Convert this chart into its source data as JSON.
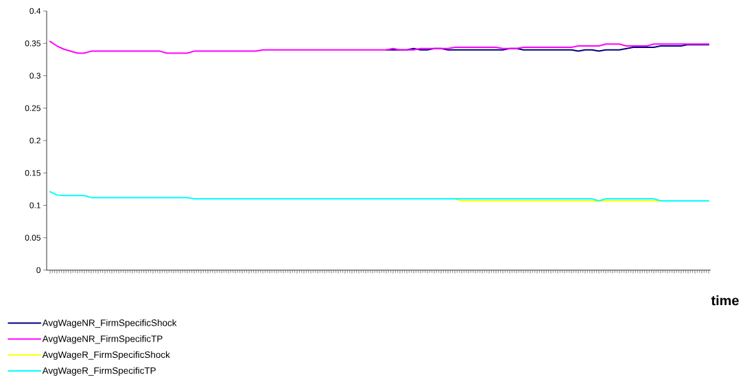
{
  "chart_data": {
    "type": "line",
    "xlabel": "time",
    "categories": [
      null,
      null,
      null,
      null,
      null,
      null,
      null,
      null,
      null,
      null,
      null,
      null,
      null,
      null,
      null,
      null,
      null,
      null,
      null,
      null,
      null,
      null,
      null,
      null,
      null,
      null,
      null,
      null,
      null,
      null,
      null,
      null,
      null,
      null,
      null,
      null,
      null,
      null,
      null,
      null,
      null,
      null,
      null,
      null,
      null,
      null,
      null,
      null,
      null,
      null,
      null,
      null,
      null,
      null,
      null,
      null,
      null,
      null,
      null,
      null,
      null,
      null,
      null,
      null,
      null,
      null,
      null,
      null,
      null,
      null,
      null,
      null,
      null,
      null,
      null,
      null,
      null,
      null,
      null,
      null,
      null,
      null,
      null,
      null,
      null,
      null,
      null,
      null,
      null,
      null,
      null,
      null,
      null,
      null,
      null,
      null,
      null
    ],
    "ylim": [
      0,
      0.4
    ],
    "yticks": [
      0,
      0.05,
      0.1,
      0.15,
      0.2,
      0.25,
      0.3,
      0.35,
      0.4
    ],
    "tick_labels": "y",
    "legend": "bottom left",
    "series": [
      {
        "name": "AvgWageNR_FirmSpecificShock",
        "color": "#000080",
        "values": [
          null,
          null,
          null,
          null,
          null,
          null,
          null,
          null,
          null,
          null,
          null,
          null,
          null,
          null,
          null,
          null,
          null,
          null,
          null,
          null,
          null,
          null,
          null,
          null,
          null,
          null,
          null,
          null,
          null,
          null,
          null,
          null,
          null,
          null,
          null,
          null,
          null,
          null,
          null,
          null,
          null,
          null,
          null,
          null,
          null,
          null,
          null,
          null,
          null,
          0.34,
          0.34,
          0.34,
          0.34,
          0.342,
          0.34,
          0.34,
          0.342,
          0.342,
          0.34,
          0.34,
          0.34,
          0.34,
          0.34,
          0.34,
          0.34,
          0.34,
          0.34,
          0.342,
          0.342,
          0.34,
          0.34,
          0.34,
          0.34,
          0.34,
          0.34,
          0.34,
          0.34,
          0.338,
          0.34,
          0.34,
          0.338,
          0.34,
          0.34,
          0.34,
          0.342,
          0.344,
          0.344,
          0.344,
          0.344,
          0.346,
          0.346,
          0.346,
          0.346,
          0.348,
          0.348,
          0.348,
          0.348
        ]
      },
      {
        "name": "AvgWageNR_FirmSpecificTP",
        "color": "#ff00ff",
        "values": [
          0.353,
          0.346,
          0.341,
          0.338,
          0.335,
          0.335,
          0.338,
          0.338,
          0.338,
          0.338,
          0.338,
          0.338,
          0.338,
          0.338,
          0.338,
          0.338,
          0.338,
          0.335,
          0.335,
          0.335,
          0.335,
          0.338,
          0.338,
          0.338,
          0.338,
          0.338,
          0.338,
          0.338,
          0.338,
          0.338,
          0.338,
          0.34,
          0.34,
          0.34,
          0.34,
          0.34,
          0.34,
          0.34,
          0.34,
          0.34,
          0.34,
          0.34,
          0.34,
          0.34,
          0.34,
          0.34,
          0.34,
          0.34,
          0.34,
          0.34,
          0.342,
          0.34,
          0.34,
          0.34,
          0.342,
          0.342,
          0.342,
          0.342,
          0.342,
          0.344,
          0.344,
          0.344,
          0.344,
          0.344,
          0.344,
          0.344,
          0.342,
          0.342,
          0.342,
          0.344,
          0.344,
          0.344,
          0.344,
          0.344,
          0.344,
          0.344,
          0.344,
          0.346,
          0.346,
          0.346,
          0.346,
          0.349,
          0.349,
          0.349,
          0.346,
          0.346,
          0.346,
          0.346,
          0.349,
          0.349,
          0.349,
          0.349,
          0.349,
          0.349,
          0.349,
          0.349,
          0.349
        ]
      },
      {
        "name": "AvgWageR_FirmSpecificShock",
        "color": "#ffff00",
        "values": [
          null,
          null,
          null,
          null,
          null,
          null,
          null,
          null,
          null,
          null,
          null,
          null,
          null,
          null,
          null,
          null,
          null,
          null,
          null,
          null,
          null,
          null,
          null,
          null,
          null,
          null,
          null,
          null,
          null,
          null,
          null,
          null,
          null,
          null,
          null,
          null,
          null,
          null,
          null,
          null,
          null,
          null,
          null,
          null,
          null,
          null,
          null,
          null,
          null,
          null,
          null,
          null,
          null,
          null,
          null,
          null,
          null,
          null,
          null,
          0.11,
          0.107,
          0.107,
          0.107,
          0.107,
          0.107,
          0.107,
          0.107,
          0.107,
          0.107,
          0.107,
          0.107,
          0.107,
          0.107,
          0.107,
          0.107,
          0.107,
          0.107,
          0.107,
          0.107,
          0.107,
          0.107,
          0.107,
          0.107,
          0.107,
          0.107,
          0.107,
          0.107,
          0.107,
          0.107,
          0.107,
          null,
          null,
          null,
          null,
          null,
          null,
          null
        ]
      },
      {
        "name": "AvgWageR_FirmSpecificTP",
        "color": "#00ffff",
        "values": [
          0.121,
          0.116,
          0.115,
          0.115,
          0.115,
          0.115,
          0.112,
          0.112,
          0.112,
          0.112,
          0.112,
          0.112,
          0.112,
          0.112,
          0.112,
          0.112,
          0.112,
          0.112,
          0.112,
          0.112,
          0.112,
          0.11,
          0.11,
          0.11,
          0.11,
          0.11,
          0.11,
          0.11,
          0.11,
          0.11,
          0.11,
          0.11,
          0.11,
          0.11,
          0.11,
          0.11,
          0.11,
          0.11,
          0.11,
          0.11,
          0.11,
          0.11,
          0.11,
          0.11,
          0.11,
          0.11,
          0.11,
          0.11,
          0.11,
          0.11,
          0.11,
          0.11,
          0.11,
          0.11,
          0.11,
          0.11,
          0.11,
          0.11,
          0.11,
          0.11,
          0.11,
          0.11,
          0.11,
          0.11,
          0.11,
          0.11,
          0.11,
          0.11,
          0.11,
          0.11,
          0.11,
          0.11,
          0.11,
          0.11,
          0.11,
          0.11,
          0.11,
          0.11,
          0.11,
          0.11,
          0.107,
          0.11,
          0.11,
          0.11,
          0.11,
          0.11,
          0.11,
          0.11,
          0.11,
          0.107,
          0.107,
          0.107,
          0.107,
          0.107,
          0.107,
          0.107,
          0.107
        ]
      }
    ]
  }
}
